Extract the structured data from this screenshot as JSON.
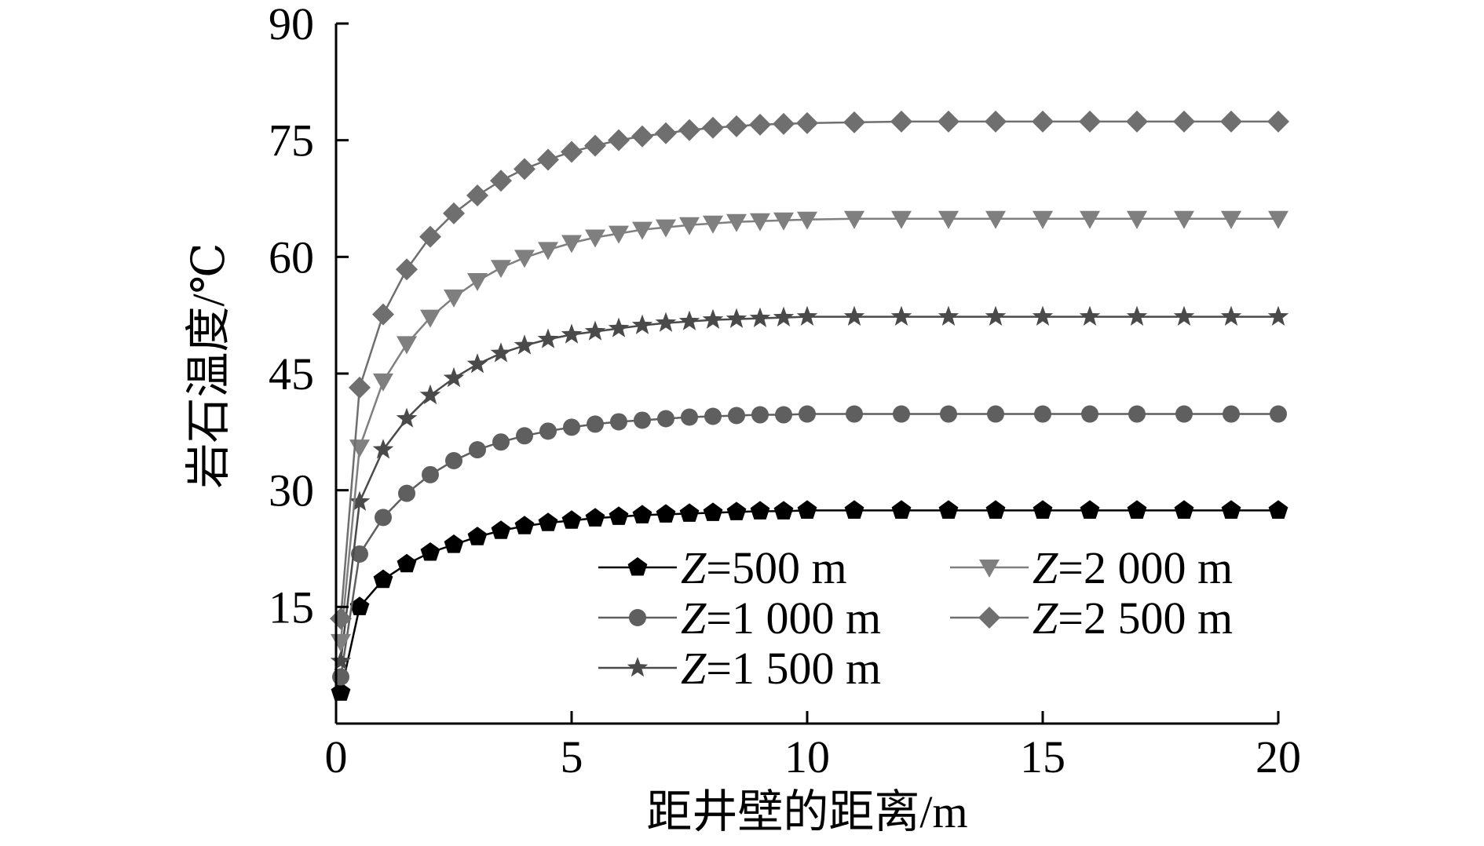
{
  "chart_data": {
    "type": "line",
    "title": "",
    "xlabel": "距井壁的距离/m",
    "ylabel": "岩石温度/℃",
    "xlim": [
      0,
      20
    ],
    "ylim": [
      0,
      90
    ],
    "x_ticks": [
      "0",
      "5",
      "10",
      "15",
      "20"
    ],
    "y_ticks": [
      "15",
      "30",
      "45",
      "60",
      "75",
      "90"
    ],
    "grid": false,
    "legend_position": "lower-right",
    "series": [
      {
        "name": "Z=500 m",
        "legend": {
          "var": "Z",
          "rest": "=500 m"
        },
        "marker": "pentagon",
        "color": "#000000",
        "x": [
          0.1,
          0.5,
          1,
          1.5,
          2,
          2.5,
          3,
          3.5,
          4,
          4.5,
          5,
          5.5,
          6,
          6.5,
          7,
          7.5,
          8,
          8.5,
          9,
          9.5,
          10,
          11,
          12,
          13,
          14,
          15,
          16,
          17,
          18,
          19,
          20
        ],
        "y": [
          4,
          15,
          18.5,
          20.5,
          22,
          23,
          24,
          24.8,
          25.4,
          25.8,
          26.1,
          26.4,
          26.6,
          26.8,
          26.9,
          27,
          27.1,
          27.2,
          27.3,
          27.3,
          27.4,
          27.4,
          27.4,
          27.4,
          27.4,
          27.4,
          27.4,
          27.4,
          27.4,
          27.4,
          27.4
        ]
      },
      {
        "name": "Z=1 000 m",
        "legend": {
          "var": "Z",
          "rest": "=1 000 m"
        },
        "marker": "circle",
        "color": "#5f5f5f",
        "x": [
          0.1,
          0.5,
          1,
          1.5,
          2,
          2.5,
          3,
          3.5,
          4,
          4.5,
          5,
          5.5,
          6,
          6.5,
          7,
          7.5,
          8,
          8.5,
          9,
          9.5,
          10,
          11,
          12,
          13,
          14,
          15,
          16,
          17,
          18,
          19,
          20
        ],
        "y": [
          6,
          21.8,
          26.5,
          29.6,
          32,
          33.8,
          35.2,
          36.2,
          37,
          37.6,
          38.1,
          38.5,
          38.8,
          39,
          39.2,
          39.4,
          39.5,
          39.6,
          39.7,
          39.7,
          39.8,
          39.8,
          39.8,
          39.8,
          39.8,
          39.8,
          39.8,
          39.8,
          39.8,
          39.8,
          39.8
        ]
      },
      {
        "name": "Z=1 500 m",
        "legend": {
          "var": "Z",
          "rest": "=1 500 m"
        },
        "marker": "star",
        "color": "#4a4a4a",
        "x": [
          0.1,
          0.5,
          1,
          1.5,
          2,
          2.5,
          3,
          3.5,
          4,
          4.5,
          5,
          5.5,
          6,
          6.5,
          7,
          7.5,
          8,
          8.5,
          9,
          9.5,
          10,
          11,
          12,
          13,
          14,
          15,
          16,
          17,
          18,
          19,
          20
        ],
        "y": [
          8,
          28.5,
          35.2,
          39.2,
          42.2,
          44.4,
          46.2,
          47.6,
          48.6,
          49.4,
          50,
          50.4,
          50.8,
          51.2,
          51.5,
          51.7,
          51.9,
          52,
          52.1,
          52.2,
          52.3,
          52.3,
          52.3,
          52.3,
          52.3,
          52.3,
          52.3,
          52.3,
          52.3,
          52.3,
          52.3
        ]
      },
      {
        "name": "Z=2 000 m",
        "legend": {
          "var": "Z",
          "rest": "=2 000 m"
        },
        "marker": "triangle-down",
        "color": "#7f7f7f",
        "x": [
          0.1,
          0.5,
          1,
          1.5,
          2,
          2.5,
          3,
          3.5,
          4,
          4.5,
          5,
          5.5,
          6,
          6.5,
          7,
          7.5,
          8,
          8.5,
          9,
          9.5,
          10,
          11,
          12,
          13,
          14,
          15,
          16,
          17,
          18,
          19,
          20
        ],
        "y": [
          10.5,
          35.5,
          44,
          48.8,
          52.2,
          54.8,
          56.9,
          58.6,
          59.9,
          60.9,
          61.8,
          62.5,
          63,
          63.5,
          63.8,
          64.1,
          64.3,
          64.5,
          64.6,
          64.7,
          64.8,
          64.9,
          64.9,
          64.9,
          64.9,
          64.9,
          64.9,
          64.9,
          64.9,
          64.9,
          64.9
        ]
      },
      {
        "name": "Z=2 500 m",
        "legend": {
          "var": "Z",
          "rest": "=2 500 m"
        },
        "marker": "diamond",
        "color": "#6f6f6f",
        "x": [
          0.1,
          0.5,
          1,
          1.5,
          2,
          2.5,
          3,
          3.5,
          4,
          4.5,
          5,
          5.5,
          6,
          6.5,
          7,
          7.5,
          8,
          8.5,
          9,
          9.5,
          10,
          11,
          12,
          13,
          14,
          15,
          16,
          17,
          18,
          19,
          20
        ],
        "y": [
          13.5,
          43.2,
          52.6,
          58.4,
          62.6,
          65.6,
          67.9,
          69.8,
          71.3,
          72.5,
          73.5,
          74.3,
          75,
          75.5,
          75.9,
          76.3,
          76.6,
          76.8,
          77,
          77.1,
          77.2,
          77.3,
          77.4,
          77.4,
          77.4,
          77.4,
          77.4,
          77.4,
          77.4,
          77.4,
          77.4
        ]
      }
    ]
  }
}
